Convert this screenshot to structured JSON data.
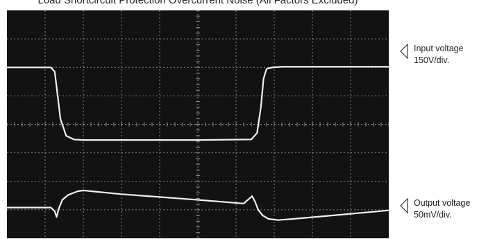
{
  "title": "Load Shortcircuit Protection Overcurrent Noise (All Factors Excluded)",
  "markers": [
    {
      "name": "Input voltage",
      "scale": "150V/div."
    },
    {
      "name": "Output voltage",
      "scale": "50mV/div."
    }
  ],
  "colors": {
    "screen": "#121212",
    "grid": "#8a8a8a",
    "trace": "#f2f2f2",
    "text": "#222222"
  },
  "chart_data": {
    "type": "line",
    "title": "Load Shortcircuit Protection Overcurrent Noise (All Factors Excluded)",
    "xlabel": "",
    "ylabel": "",
    "grid": true,
    "x_divisions": 10,
    "y_divisions": 8,
    "xlim": [
      0,
      10
    ],
    "ylim": [
      -4,
      4
    ],
    "series": [
      {
        "name": "Input voltage",
        "scale": "150V/div.",
        "x": [
          0,
          1.15,
          1.25,
          1.32,
          1.4,
          1.55,
          1.75,
          2.0,
          3.5,
          5.0,
          6.4,
          6.55,
          6.65,
          6.72,
          6.8,
          6.95,
          7.2,
          10
        ],
        "y": [
          2.0,
          2.0,
          1.85,
          1.1,
          0.2,
          -0.4,
          -0.53,
          -0.55,
          -0.55,
          -0.55,
          -0.53,
          -0.3,
          0.6,
          1.6,
          1.95,
          2.0,
          2.02,
          2.02
        ]
      },
      {
        "name": "Output voltage",
        "scale": "50mV/div.",
        "x": [
          0,
          1.15,
          1.25,
          1.3,
          1.36,
          1.45,
          1.6,
          1.85,
          2.0,
          3.0,
          4.0,
          5.0,
          6.2,
          6.35,
          6.42,
          6.5,
          6.58,
          6.7,
          6.85,
          7.1,
          7.5,
          8.5,
          10
        ],
        "y": [
          -2.92,
          -2.92,
          -3.05,
          -3.25,
          -2.95,
          -2.65,
          -2.48,
          -2.35,
          -2.32,
          -2.45,
          -2.55,
          -2.65,
          -2.78,
          -2.6,
          -2.52,
          -2.72,
          -3.0,
          -3.2,
          -3.32,
          -3.36,
          -3.32,
          -3.2,
          -3.02
        ]
      }
    ]
  }
}
